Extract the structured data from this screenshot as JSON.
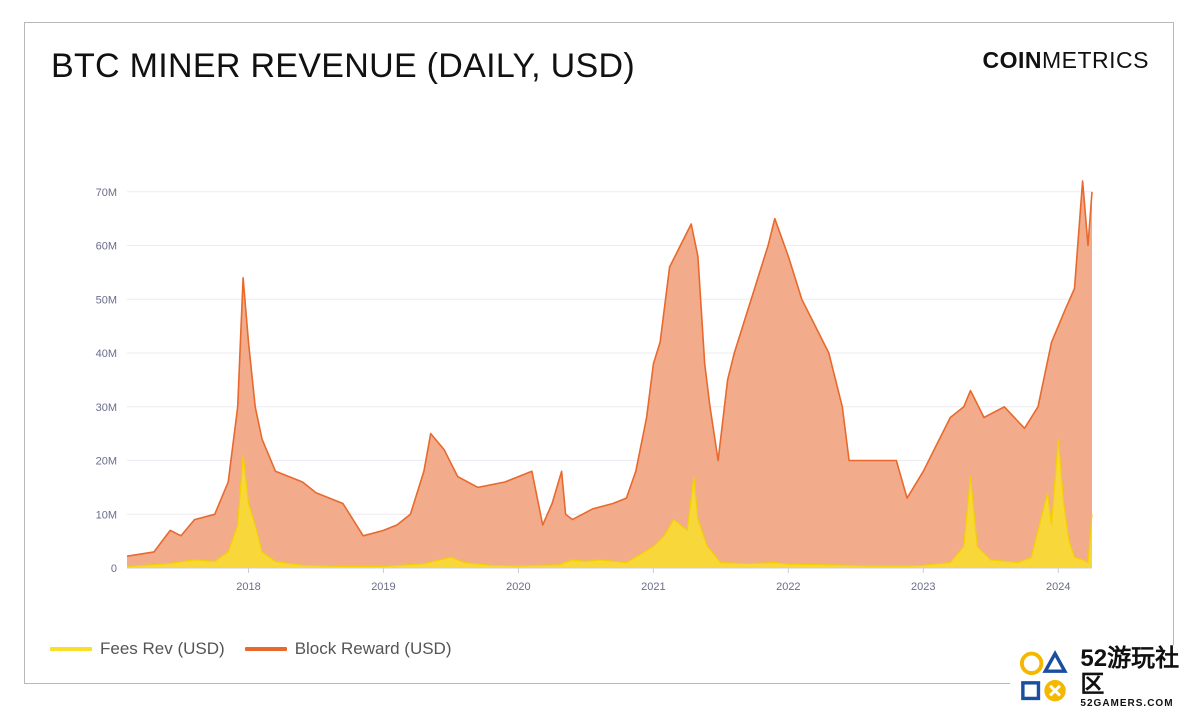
{
  "header": {
    "title": "BTC MINER REVENUE (DAILY, USD)"
  },
  "brand": {
    "part1": "COIN",
    "part2": "METRICS"
  },
  "watermark": {
    "main": "52游玩社区",
    "sub": "52GAMERS.COM"
  },
  "colors": {
    "fees": "#f9de2c",
    "block_reward_line": "#e9692c",
    "block_reward_fill": "#f2ac8c",
    "axis_text": "#6a6d8a"
  },
  "chart_data": {
    "type": "area",
    "title": "BTC MINER REVENUE (DAILY, USD)",
    "xlabel": "",
    "ylabel": "",
    "x_range": [
      2017.1,
      2024.25
    ],
    "ylim": [
      0,
      80
    ],
    "y_unit": "M",
    "y_ticks": [
      0,
      10,
      20,
      30,
      40,
      50,
      60,
      70
    ],
    "y_tick_labels": [
      "0",
      "10M",
      "20M",
      "30M",
      "40M",
      "50M",
      "60M",
      "70M"
    ],
    "x_ticks": [
      2018,
      2019,
      2020,
      2021,
      2022,
      2023,
      2024
    ],
    "x_tick_labels": [
      "2018",
      "2019",
      "2020",
      "2021",
      "2022",
      "2023",
      "2024"
    ],
    "grid": true,
    "legend_position": "bottom-left",
    "series": [
      {
        "name": "Fees Rev (USD)",
        "color": "#f9de2c",
        "points": [
          [
            2017.1,
            0.3
          ],
          [
            2017.4,
            0.8
          ],
          [
            2017.6,
            1.5
          ],
          [
            2017.75,
            1.2
          ],
          [
            2017.85,
            3
          ],
          [
            2017.92,
            8
          ],
          [
            2017.96,
            21
          ],
          [
            2018.0,
            12
          ],
          [
            2018.05,
            8
          ],
          [
            2018.1,
            3
          ],
          [
            2018.2,
            1.2
          ],
          [
            2018.4,
            0.5
          ],
          [
            2018.7,
            0.3
          ],
          [
            2019.0,
            0.3
          ],
          [
            2019.3,
            0.8
          ],
          [
            2019.5,
            2
          ],
          [
            2019.6,
            1
          ],
          [
            2019.8,
            0.5
          ],
          [
            2020.0,
            0.4
          ],
          [
            2020.3,
            0.6
          ],
          [
            2020.4,
            1.5
          ],
          [
            2020.5,
            1.2
          ],
          [
            2020.6,
            1.5
          ],
          [
            2020.8,
            1
          ],
          [
            2020.9,
            2.5
          ],
          [
            2021.0,
            4
          ],
          [
            2021.08,
            6
          ],
          [
            2021.15,
            9
          ],
          [
            2021.2,
            8
          ],
          [
            2021.25,
            7
          ],
          [
            2021.3,
            17
          ],
          [
            2021.33,
            9
          ],
          [
            2021.4,
            4
          ],
          [
            2021.5,
            1
          ],
          [
            2021.7,
            0.8
          ],
          [
            2021.9,
            1
          ],
          [
            2022.0,
            0.7
          ],
          [
            2022.3,
            0.6
          ],
          [
            2022.6,
            0.4
          ],
          [
            2022.9,
            0.4
          ],
          [
            2023.0,
            0.5
          ],
          [
            2023.2,
            1
          ],
          [
            2023.3,
            4
          ],
          [
            2023.35,
            17
          ],
          [
            2023.4,
            4
          ],
          [
            2023.5,
            1.5
          ],
          [
            2023.7,
            1
          ],
          [
            2023.8,
            2
          ],
          [
            2023.88,
            10
          ],
          [
            2023.92,
            14
          ],
          [
            2023.95,
            8
          ],
          [
            2024.0,
            24
          ],
          [
            2024.04,
            12
          ],
          [
            2024.08,
            5
          ],
          [
            2024.12,
            2
          ],
          [
            2024.18,
            1.5
          ],
          [
            2024.22,
            1
          ],
          [
            2024.25,
            10
          ]
        ]
      },
      {
        "name": "Block Reward (USD)",
        "color": "#e9692c",
        "points": [
          [
            2017.1,
            2.2
          ],
          [
            2017.3,
            3
          ],
          [
            2017.42,
            7
          ],
          [
            2017.5,
            6
          ],
          [
            2017.6,
            9
          ],
          [
            2017.75,
            10
          ],
          [
            2017.85,
            16
          ],
          [
            2017.92,
            30
          ],
          [
            2017.96,
            54
          ],
          [
            2018.0,
            42
          ],
          [
            2018.05,
            30
          ],
          [
            2018.1,
            24
          ],
          [
            2018.2,
            18
          ],
          [
            2018.3,
            17
          ],
          [
            2018.4,
            16
          ],
          [
            2018.5,
            14
          ],
          [
            2018.6,
            13
          ],
          [
            2018.7,
            12
          ],
          [
            2018.85,
            6
          ],
          [
            2019.0,
            7
          ],
          [
            2019.1,
            8
          ],
          [
            2019.2,
            10
          ],
          [
            2019.3,
            18
          ],
          [
            2019.35,
            25
          ],
          [
            2019.45,
            22
          ],
          [
            2019.55,
            17
          ],
          [
            2019.7,
            15
          ],
          [
            2019.9,
            16
          ],
          [
            2020.0,
            17
          ],
          [
            2020.1,
            18
          ],
          [
            2020.18,
            8
          ],
          [
            2020.25,
            12
          ],
          [
            2020.32,
            18
          ],
          [
            2020.35,
            10
          ],
          [
            2020.4,
            9
          ],
          [
            2020.55,
            11
          ],
          [
            2020.7,
            12
          ],
          [
            2020.8,
            13
          ],
          [
            2020.87,
            18
          ],
          [
            2020.95,
            28
          ],
          [
            2021.0,
            38
          ],
          [
            2021.05,
            42
          ],
          [
            2021.12,
            56
          ],
          [
            2021.2,
            60
          ],
          [
            2021.28,
            64
          ],
          [
            2021.33,
            58
          ],
          [
            2021.38,
            38
          ],
          [
            2021.42,
            30
          ],
          [
            2021.48,
            20
          ],
          [
            2021.55,
            35
          ],
          [
            2021.6,
            40
          ],
          [
            2021.7,
            48
          ],
          [
            2021.75,
            52
          ],
          [
            2021.8,
            56
          ],
          [
            2021.85,
            60
          ],
          [
            2021.9,
            65
          ],
          [
            2022.0,
            58
          ],
          [
            2022.1,
            50
          ],
          [
            2022.2,
            45
          ],
          [
            2022.3,
            40
          ],
          [
            2022.4,
            30
          ],
          [
            2022.45,
            20
          ],
          [
            2022.6,
            20
          ],
          [
            2022.8,
            20
          ],
          [
            2022.88,
            13
          ],
          [
            2023.0,
            18
          ],
          [
            2023.1,
            23
          ],
          [
            2023.2,
            28
          ],
          [
            2023.3,
            30
          ],
          [
            2023.35,
            33
          ],
          [
            2023.45,
            28
          ],
          [
            2023.6,
            30
          ],
          [
            2023.75,
            26
          ],
          [
            2023.85,
            30
          ],
          [
            2023.95,
            42
          ],
          [
            2024.0,
            45
          ],
          [
            2024.05,
            48
          ],
          [
            2024.12,
            52
          ],
          [
            2024.18,
            72
          ],
          [
            2024.22,
            60
          ],
          [
            2024.25,
            70
          ]
        ]
      }
    ]
  }
}
